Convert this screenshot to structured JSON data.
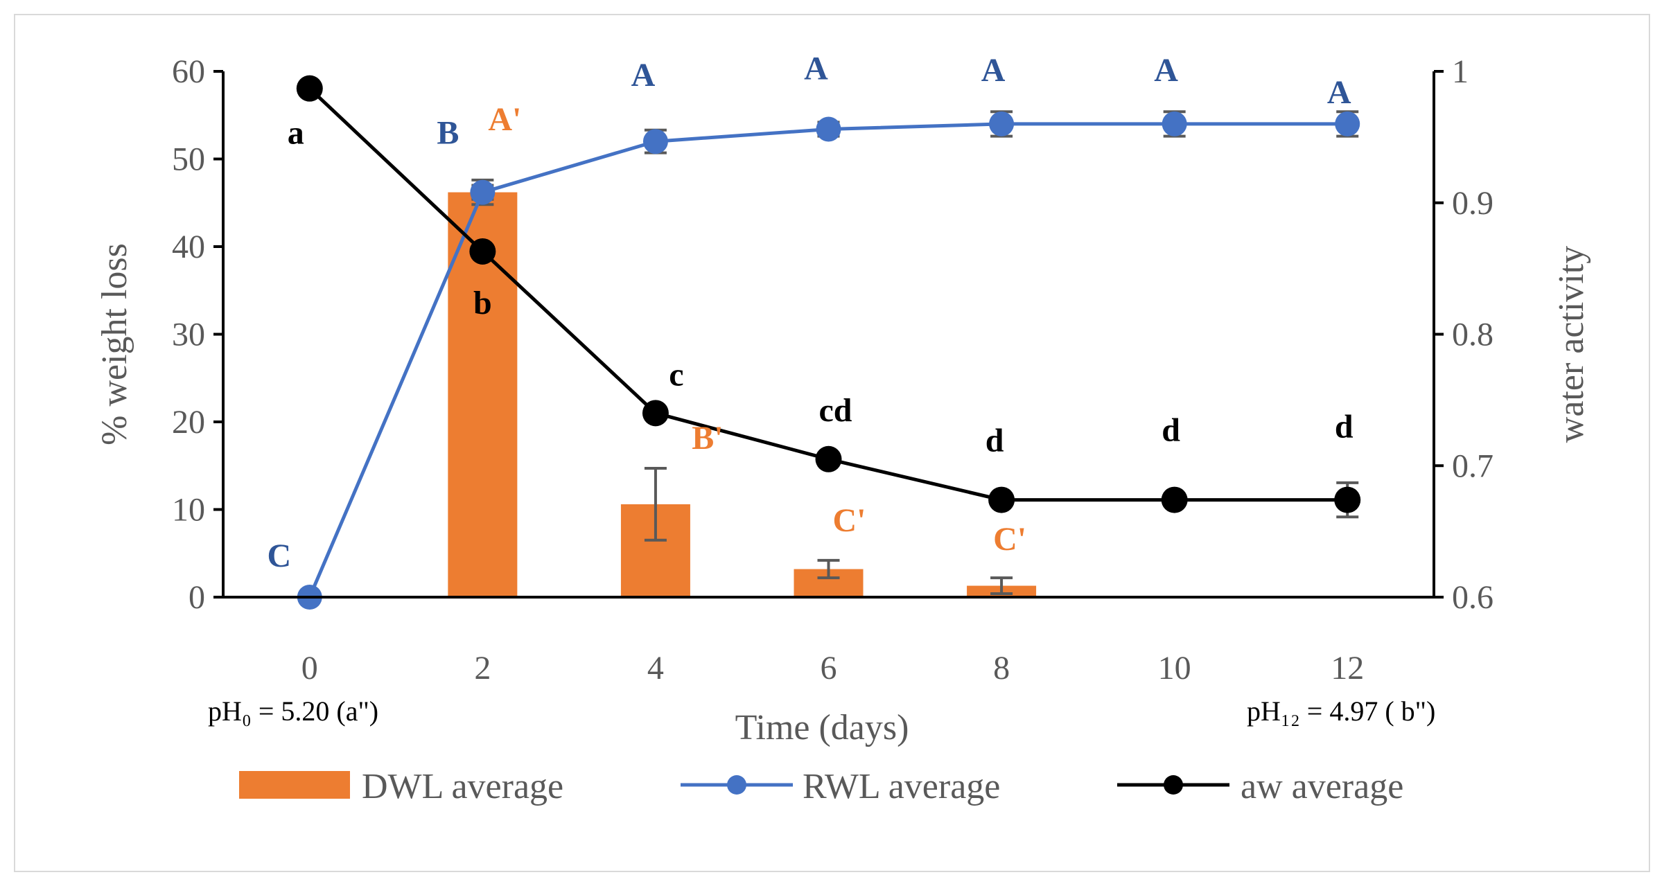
{
  "colors": {
    "dwl": "#ED7D31",
    "rwl": "#4472C4",
    "aw": "#000000",
    "axis": "#000000",
    "tick_text": "#595959",
    "error_bar": "#595959",
    "rwl_label": "#2F5597",
    "dwl_label": "#ED7D31",
    "aw_label": "#000000"
  },
  "chart_data": {
    "type": "bar+line",
    "x_categories": [
      0,
      2,
      4,
      6,
      8,
      10,
      12
    ],
    "xlabel": "Time (days)",
    "ylabel_left": "% weight loss",
    "ylabel_right": "water activity",
    "y_left_lim": [
      0,
      60
    ],
    "y_left_ticks": [
      0,
      10,
      20,
      30,
      40,
      50,
      60
    ],
    "y_right_lim": [
      0.6,
      1.0
    ],
    "y_right_ticks": [
      "0.6",
      "0.7",
      "0.8",
      "0.9",
      "1"
    ],
    "series": [
      {
        "name": "DWL average",
        "type": "bar",
        "axis": "left",
        "x": [
          2,
          4,
          6,
          8,
          10
        ],
        "values": [
          46.2,
          10.6,
          3.2,
          1.3,
          0.1
        ],
        "errors": [
          1.4,
          4.1,
          1.0,
          0.9,
          0.0
        ],
        "labels": [
          "A'",
          "B'",
          "C'",
          "C'",
          ""
        ]
      },
      {
        "name": "RWL average",
        "type": "line",
        "axis": "left",
        "x": [
          0,
          2,
          4,
          6,
          8,
          10,
          12
        ],
        "values": [
          0,
          46.2,
          52.0,
          53.4,
          54.0,
          54.0,
          54.0
        ],
        "errors": [
          0,
          0.8,
          1.3,
          0.8,
          1.4,
          1.4,
          1.4
        ],
        "labels": [
          "C",
          "B",
          "A",
          "A",
          "A",
          "A",
          "A"
        ]
      },
      {
        "name": "aw average",
        "type": "line",
        "axis": "right",
        "x": [
          0,
          2,
          4,
          6,
          8,
          10,
          12
        ],
        "values": [
          0.987,
          0.863,
          0.74,
          0.705,
          0.674,
          0.674,
          0.674
        ],
        "errors": [
          0,
          0,
          0,
          0,
          0,
          0,
          0.013
        ],
        "labels": [
          "a",
          "b",
          "c",
          "cd",
          "d",
          "d",
          "d"
        ]
      }
    ],
    "annotations": {
      "ph_start": "pH₀ = 5.20 (a\")",
      "ph_end": "pH₁₂ = 4.97 ( b\")"
    },
    "legend": [
      "DWL average",
      "RWL average",
      "aw average"
    ],
    "legend_position": "bottom",
    "grid": false
  }
}
